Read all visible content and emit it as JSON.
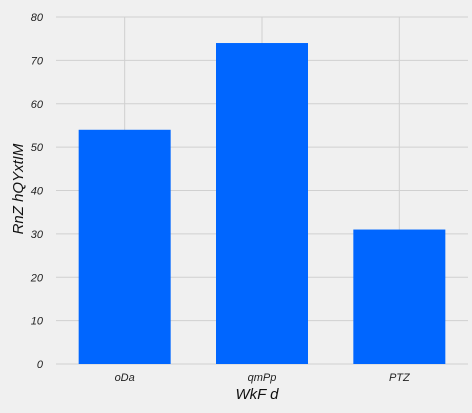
{
  "chart_data": {
    "type": "bar",
    "title": "",
    "xlabel": "WkF d",
    "ylabel": "RnZ hQYxtIM",
    "categories": [
      "oDa",
      "qmPp",
      "PTZ"
    ],
    "values": [
      54,
      74,
      31
    ],
    "ylim": [
      0,
      80
    ],
    "yticks": [
      0,
      10,
      20,
      30,
      40,
      50,
      60,
      70,
      80
    ],
    "grid": true,
    "bar_color": "#0066ff",
    "grid_color": "#d0d0d0",
    "background": "#f0f0f0"
  }
}
